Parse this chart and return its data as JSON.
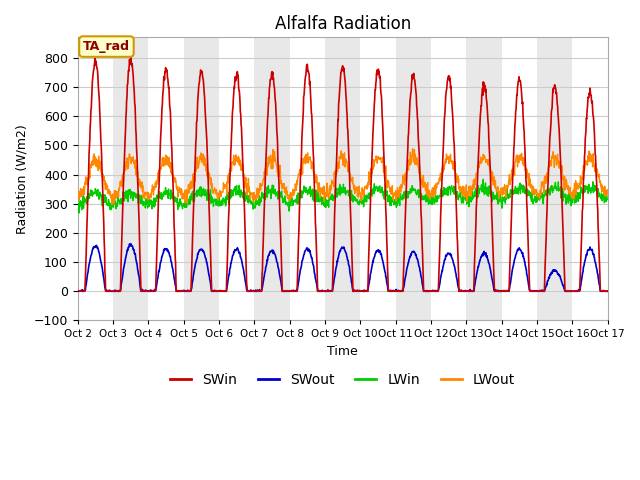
{
  "title": "Alfalfa Radiation",
  "xlabel": "Time",
  "ylabel": "Radiation (W/m2)",
  "ylim": [
    -100,
    870
  ],
  "xlim": [
    0,
    360
  ],
  "annotation_text": "TA_rad",
  "annotation_bg": "#ffffcc",
  "annotation_border": "#cc9900",
  "tick_labels": [
    "Oct 2",
    "Oct 3",
    "Oct 4",
    "Oct 5",
    "Oct 6",
    "Oct 7",
    "Oct 8",
    "Oct 9",
    "Oct 10",
    "Oct 11",
    "Oct 12",
    "Oct 13",
    "Oct 14",
    "Oct 15",
    "Oct 16",
    "Oct 17"
  ],
  "tick_positions": [
    0,
    24,
    48,
    72,
    96,
    120,
    144,
    168,
    192,
    216,
    240,
    264,
    288,
    312,
    336,
    360
  ],
  "sw_in_peaks": [
    790,
    795,
    760,
    755,
    745,
    750,
    765,
    770,
    755,
    735,
    730,
    705,
    725,
    700,
    680
  ],
  "sw_out_peaks": [
    155,
    160,
    145,
    145,
    145,
    140,
    145,
    150,
    140,
    135,
    130,
    130,
    145,
    70,
    145
  ],
  "lwin_base": 315,
  "lwout_base": 375,
  "colors": {
    "SWin": "#cc0000",
    "SWout": "#0000cc",
    "LWin": "#00cc00",
    "LWout": "#ff8800"
  },
  "band_colors": [
    "#ffffff",
    "#e8e8e8"
  ],
  "grid_color": "#cccccc",
  "num_days": 15,
  "seed": 42
}
